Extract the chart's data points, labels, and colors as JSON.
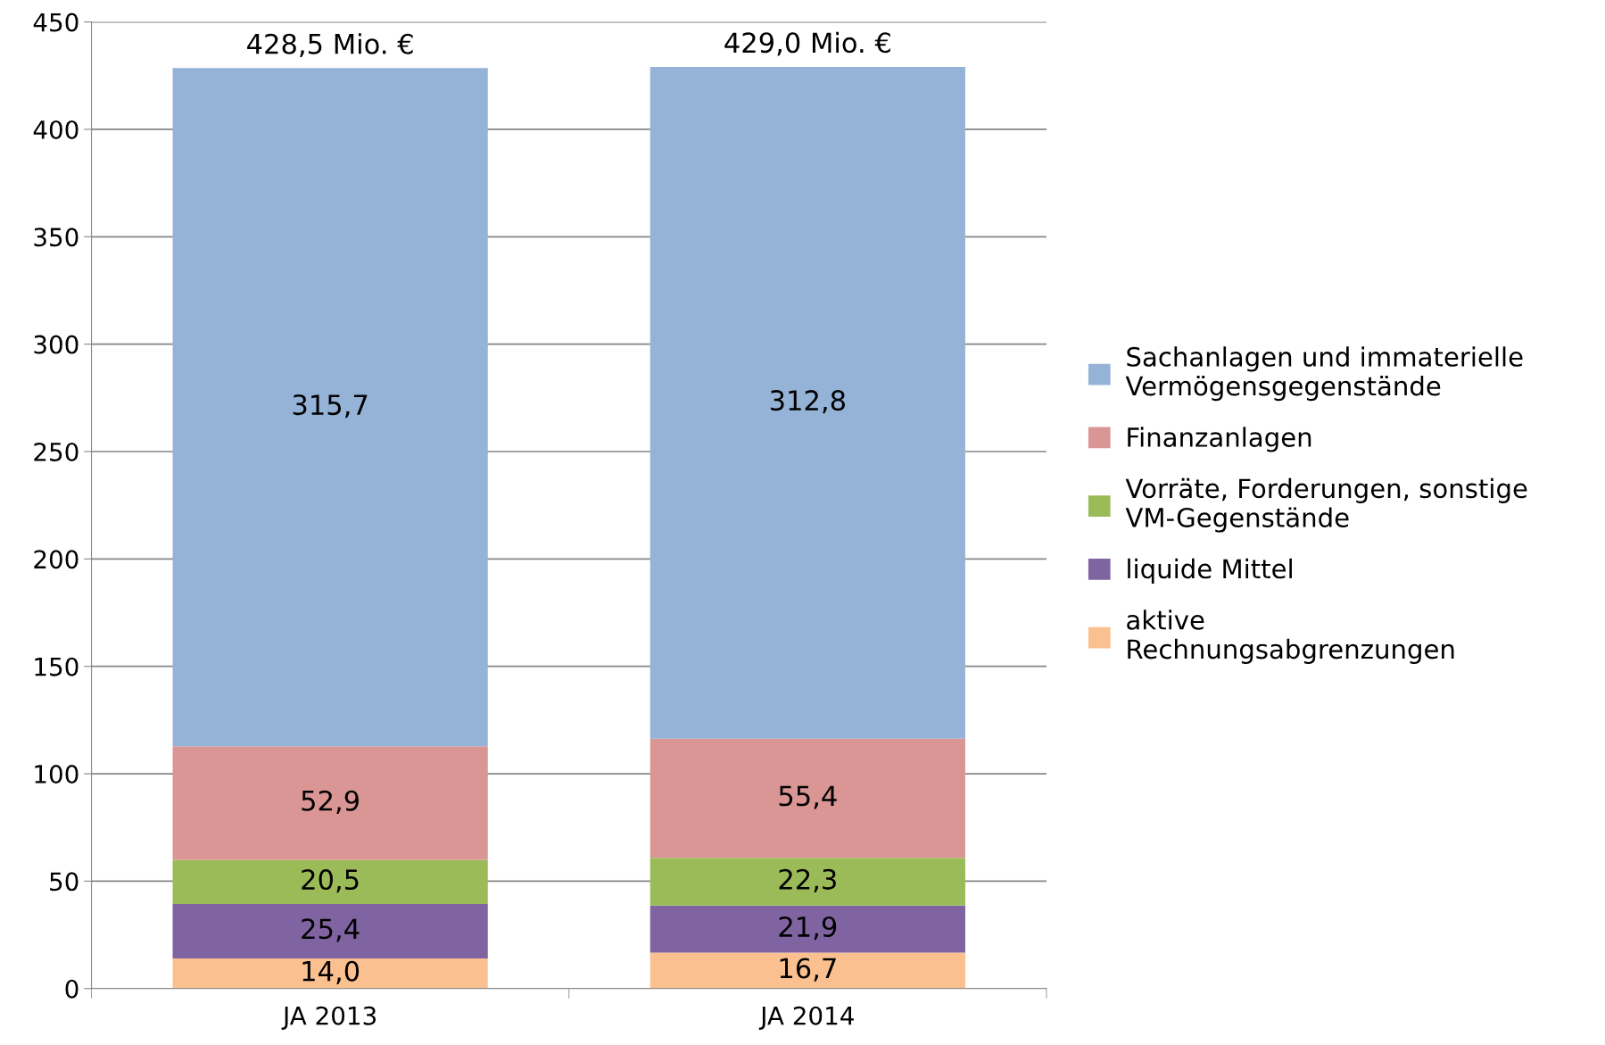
{
  "chart_data": {
    "type": "bar",
    "stacked": true,
    "categories": [
      "JA 2013",
      "JA 2014"
    ],
    "series": [
      {
        "name": "aktive\nRechnungsabgrenzungen",
        "color": "#fac090",
        "values": [
          14.0,
          16.7
        ],
        "value_labels": [
          "14,0",
          "16,7"
        ]
      },
      {
        "name": "liquide Mittel",
        "color": "#8064a2",
        "values": [
          25.4,
          21.9
        ],
        "value_labels": [
          "25,4",
          "21,9"
        ]
      },
      {
        "name": "Vorräte, Forderungen, sonstige\nVM-Gegenstände",
        "color": "#9bbb59",
        "values": [
          20.5,
          22.3
        ],
        "value_labels": [
          "20,5",
          "22,3"
        ]
      },
      {
        "name": "Finanzanlagen",
        "color": "#d99694",
        "values": [
          52.9,
          55.4
        ],
        "value_labels": [
          "52,9",
          "55,4"
        ]
      },
      {
        "name": "Sachanlagen und immaterielle\nVermögensgegenstände",
        "color": "#95b3d7",
        "values": [
          315.7,
          312.8
        ],
        "value_labels": [
          "315,7",
          "312,8"
        ]
      }
    ],
    "totals": [
      "428,5 Mio. €",
      "429,0 Mio. €"
    ],
    "ylim": [
      0,
      450
    ],
    "yticks": [
      0,
      50,
      100,
      150,
      200,
      250,
      300,
      350,
      400,
      450
    ],
    "grid": "y",
    "legend": "right"
  }
}
